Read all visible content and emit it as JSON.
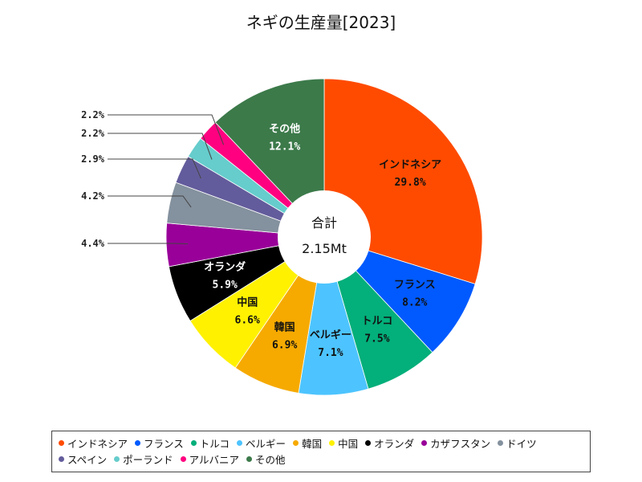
{
  "chart_data": {
    "type": "pie",
    "title": "ネギの生産量[2023]",
    "center_label": "合計",
    "center_value": "2.15Mt",
    "legend_position": "bottom",
    "slices": [
      {
        "name": "インドネシア",
        "value": 29.8,
        "label": "29.8%",
        "color": "#ff4b00"
      },
      {
        "name": "フランス",
        "value": 8.2,
        "label": "8.2%",
        "color": "#005aff"
      },
      {
        "name": "トルコ",
        "value": 7.5,
        "label": "7.5%",
        "color": "#03af7a"
      },
      {
        "name": "ベルギー",
        "value": 7.1,
        "label": "7.1%",
        "color": "#4dc4ff"
      },
      {
        "name": "韓国",
        "value": 6.9,
        "label": "6.9%",
        "color": "#f6aa00"
      },
      {
        "name": "中国",
        "value": 6.6,
        "label": "6.6%",
        "color": "#fff100"
      },
      {
        "name": "オランダ",
        "value": 5.9,
        "label": "5.9%",
        "color": "#000000"
      },
      {
        "name": "カザフスタン",
        "value": 4.4,
        "label": "4.4%",
        "color": "#990099"
      },
      {
        "name": "ドイツ",
        "value": 4.2,
        "label": "4.2%",
        "color": "#84919e"
      },
      {
        "name": "スペイン",
        "value": 2.9,
        "label": "2.9%",
        "color": "#635c9c"
      },
      {
        "name": "ポーランド",
        "value": 2.2,
        "label": "2.2%",
        "color": "#66cccc"
      },
      {
        "name": "アルバニア",
        "value": 2.2,
        "label": "2.2%",
        "color": "#ff0080"
      },
      {
        "name": "その他",
        "value": 12.1,
        "label": "12.1%",
        "color": "#3c7a4a"
      }
    ]
  }
}
